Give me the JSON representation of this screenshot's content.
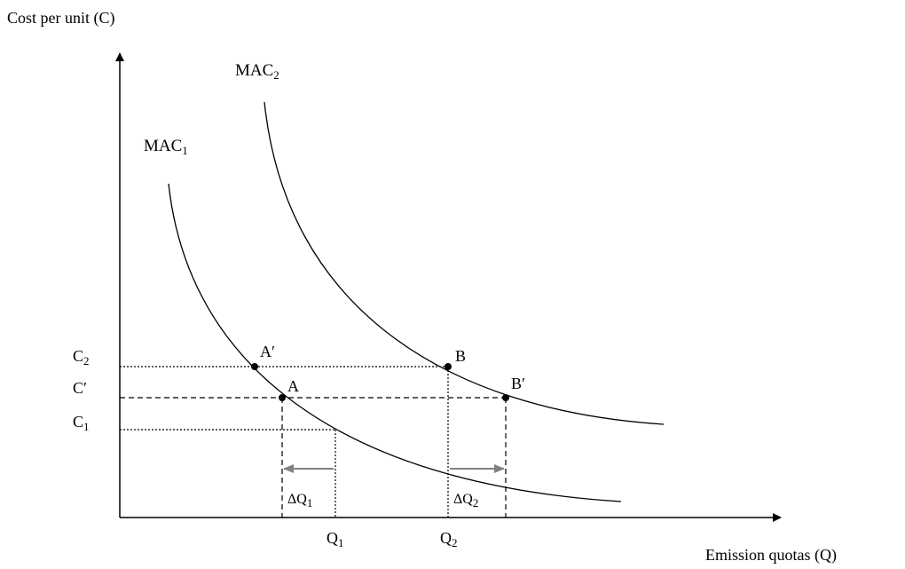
{
  "y_axis_label": "Cost per unit (C)",
  "x_axis_label": "Emission quotas (Q)",
  "curves": [
    {
      "text": "MAC",
      "sub": "1"
    },
    {
      "text": "MAC",
      "sub": "2"
    }
  ],
  "y_levels": [
    {
      "text": "C",
      "sub": "2"
    },
    {
      "text": "C′",
      "sub": ""
    },
    {
      "text": "C",
      "sub": "1"
    }
  ],
  "x_levels": [
    {
      "text": "Q",
      "sub": "1"
    },
    {
      "text": "Q",
      "sub": "2"
    }
  ],
  "shifts": [
    {
      "text": "ΔQ",
      "sub": "1"
    },
    {
      "text": "ΔQ",
      "sub": "2"
    }
  ],
  "points": [
    "A′",
    "A",
    "B",
    "B′"
  ]
}
